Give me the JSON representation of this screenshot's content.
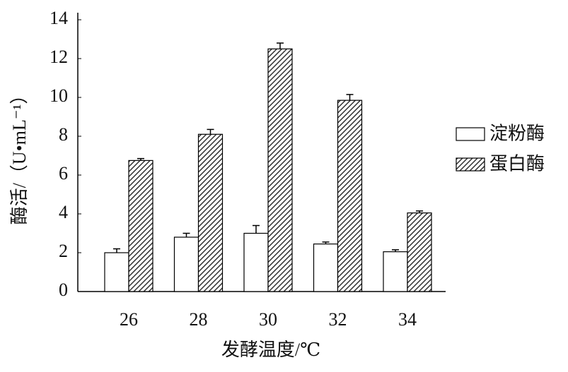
{
  "chart_data": {
    "type": "bar",
    "x_label": "发酵温度/℃",
    "y_label": "酶活/（U•mL⁻¹）",
    "categories": [
      "26",
      "28",
      "30",
      "32",
      "34"
    ],
    "series": [
      {
        "name": "淀粉酶",
        "color": "#ffffff",
        "hatch": false,
        "values": [
          2.0,
          2.8,
          3.0,
          2.45,
          2.05
        ],
        "errors": [
          0.2,
          0.2,
          0.4,
          0.1,
          0.1
        ]
      },
      {
        "name": "蛋白酶",
        "color": "#333333",
        "hatch": true,
        "values": [
          6.75,
          8.1,
          12.5,
          9.85,
          4.05
        ],
        "errors": [
          0.1,
          0.25,
          0.3,
          0.3,
          0.1
        ]
      }
    ],
    "ylim": [
      0,
      14
    ],
    "yticks": [
      0,
      2,
      4,
      6,
      8,
      10,
      12,
      14
    ],
    "grid": false,
    "legend": "right"
  }
}
